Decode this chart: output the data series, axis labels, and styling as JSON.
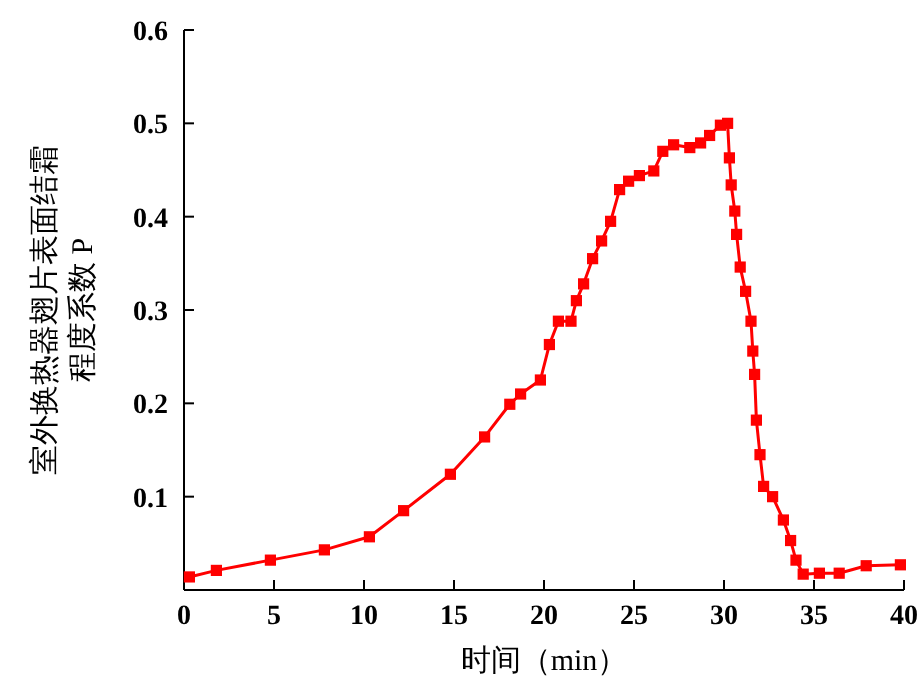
{
  "chart_data": {
    "type": "line",
    "xlabel": "时间（min）",
    "ylabel": "室外换热器翅片表面结霜程度系数 P",
    "xlim": [
      0,
      40
    ],
    "ylim": [
      0,
      0.6
    ],
    "xticks": [
      0,
      5,
      10,
      15,
      20,
      25,
      30,
      35,
      40
    ],
    "yticks": [
      {
        "value": 0,
        "label": null
      },
      0.1,
      0.2,
      0.3,
      0.4,
      0.5,
      0.6
    ],
    "marker": "square",
    "series": [
      {
        "color": "#ff0000",
        "x": [
          0.3,
          1.8,
          4.8,
          7.8,
          10.3,
          12.2,
          14.8,
          16.7,
          18.1,
          18.7,
          19.8,
          20.3,
          20.8,
          21.5,
          21.8,
          22.2,
          22.7,
          23.2,
          23.7,
          24.2,
          24.7,
          25.3,
          26.1,
          26.6,
          27.2,
          28.1,
          28.7,
          29.2,
          29.8,
          30.2,
          30.3,
          30.4,
          30.6,
          30.7,
          30.9,
          31.2,
          31.5,
          31.6,
          31.7,
          31.8,
          32.0,
          32.2,
          32.7,
          33.3,
          33.7,
          34.0,
          34.4,
          35.3,
          36.4,
          37.9,
          39.8
        ],
        "values": [
          0.014,
          0.021,
          0.032,
          0.043,
          0.057,
          0.085,
          0.124,
          0.164,
          0.199,
          0.21,
          0.225,
          0.263,
          0.288,
          0.288,
          0.31,
          0.328,
          0.355,
          0.374,
          0.395,
          0.429,
          0.438,
          0.444,
          0.449,
          0.47,
          0.477,
          0.474,
          0.479,
          0.487,
          0.498,
          0.5,
          0.463,
          0.434,
          0.406,
          0.381,
          0.346,
          0.32,
          0.288,
          0.256,
          0.231,
          0.182,
          0.145,
          0.111,
          0.1,
          0.075,
          0.053,
          0.032,
          0.017,
          0.018,
          0.018,
          0.026,
          0.027
        ]
      }
    ]
  }
}
